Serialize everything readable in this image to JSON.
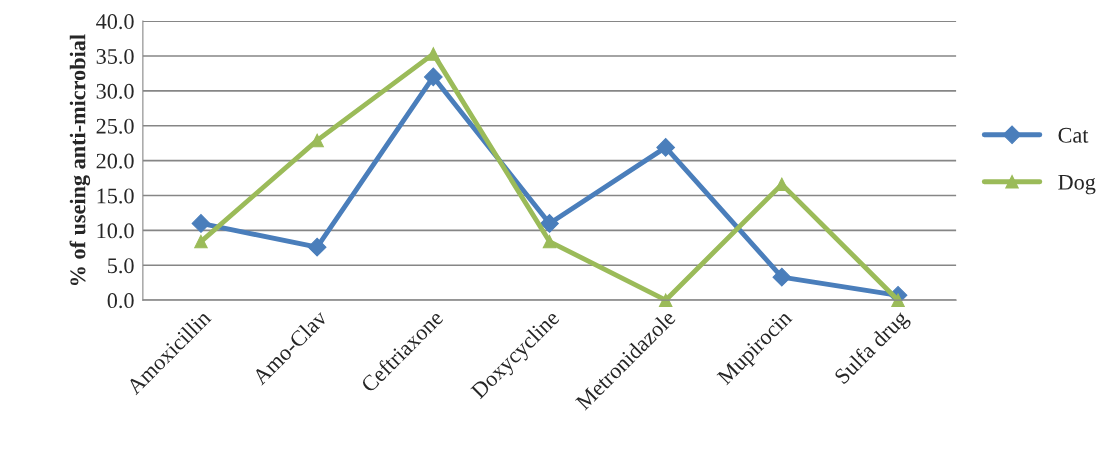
{
  "chart_data": {
    "type": "line",
    "ylabel": "% of useing anti-microbial",
    "categories": [
      "Amoxicillin",
      "Amo-Clav",
      "Ceftriaxone",
      "Doxycycline",
      "Metronidazole",
      "Mupirocin",
      "Sulfa drug"
    ],
    "series": [
      {
        "name": "Cat",
        "color": "#4a7ebb",
        "marker": "diamond",
        "values": [
          11.0,
          7.6,
          32.0,
          11.0,
          21.9,
          3.3,
          0.7
        ]
      },
      {
        "name": "Dog",
        "color": "#9bbb59",
        "marker": "triangle",
        "values": [
          8.4,
          22.9,
          35.3,
          8.4,
          0.0,
          16.6,
          0.0
        ]
      }
    ],
    "ylim": [
      0,
      40
    ],
    "yticks": [
      {
        "value": 0,
        "label": "0.0"
      },
      {
        "value": 5,
        "label": "5.0"
      },
      {
        "value": 10,
        "label": "10.0"
      },
      {
        "value": 15,
        "label": "15.0"
      },
      {
        "value": 20,
        "label": "20.0"
      },
      {
        "value": 25,
        "label": "25.0"
      },
      {
        "value": 30,
        "label": "30.0"
      },
      {
        "value": 35,
        "label": "35.0"
      },
      {
        "value": 40,
        "label": "40.0"
      }
    ],
    "grid": "y",
    "legend": "right"
  }
}
